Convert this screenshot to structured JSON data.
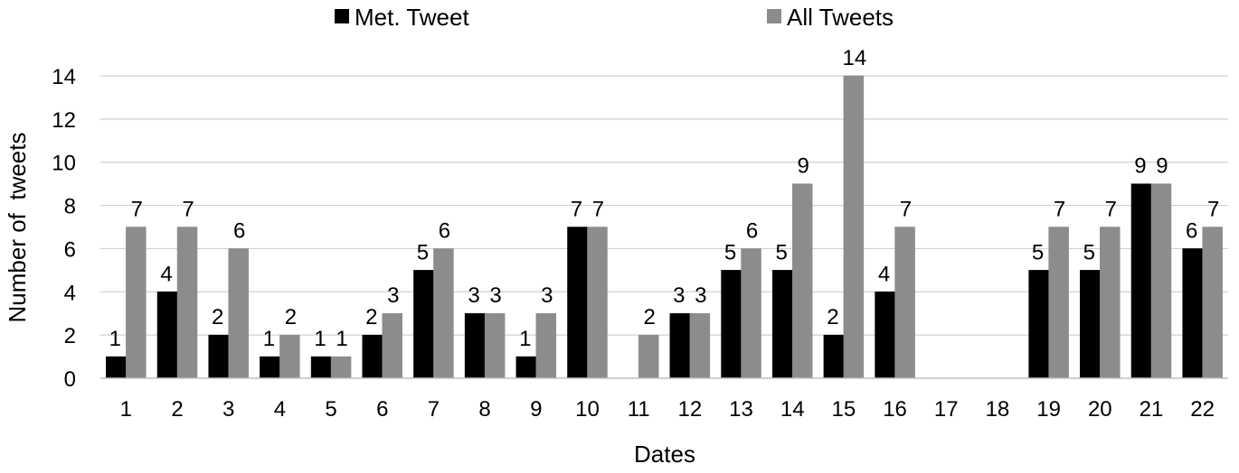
{
  "chart_data": {
    "type": "bar",
    "xlabel": "Dates",
    "ylabel": "Number of  tweets",
    "ylim": [
      0,
      14
    ],
    "yticks": [
      0,
      2,
      4,
      6,
      8,
      10,
      12,
      14
    ],
    "grid": true,
    "legend_position": "top",
    "categories": [
      "1",
      "2",
      "3",
      "4",
      "5",
      "6",
      "7",
      "8",
      "9",
      "10",
      "11",
      "12",
      "13",
      "14",
      "15",
      "16",
      "17",
      "18",
      "19",
      "20",
      "21",
      "22"
    ],
    "series": [
      {
        "name": "Met. Tweet",
        "color": "#000000",
        "values": [
          1,
          4,
          2,
          1,
          1,
          2,
          5,
          3,
          1,
          7,
          0,
          3,
          5,
          5,
          2,
          4,
          0,
          0,
          5,
          5,
          9,
          6
        ],
        "labels": [
          "1",
          "4",
          "2",
          "1",
          "1",
          "2",
          "5",
          "3",
          "1",
          "7",
          "",
          "3",
          "5",
          "5",
          "2",
          "4",
          "",
          "",
          "5",
          "5",
          "9",
          "6"
        ]
      },
      {
        "name": "All Tweets",
        "color": "#8c8c8c",
        "values": [
          7,
          7,
          6,
          2,
          1,
          3,
          6,
          3,
          3,
          7,
          2,
          3,
          6,
          9,
          14,
          7,
          0,
          0,
          7,
          7,
          9,
          7
        ],
        "labels": [
          "7",
          "7",
          "6",
          "2",
          "1",
          "3",
          "6",
          "3",
          "3",
          "7",
          "2",
          "3",
          "6",
          "9",
          "14",
          "7",
          "",
          "",
          "7",
          "7",
          "9",
          "7"
        ]
      }
    ]
  }
}
